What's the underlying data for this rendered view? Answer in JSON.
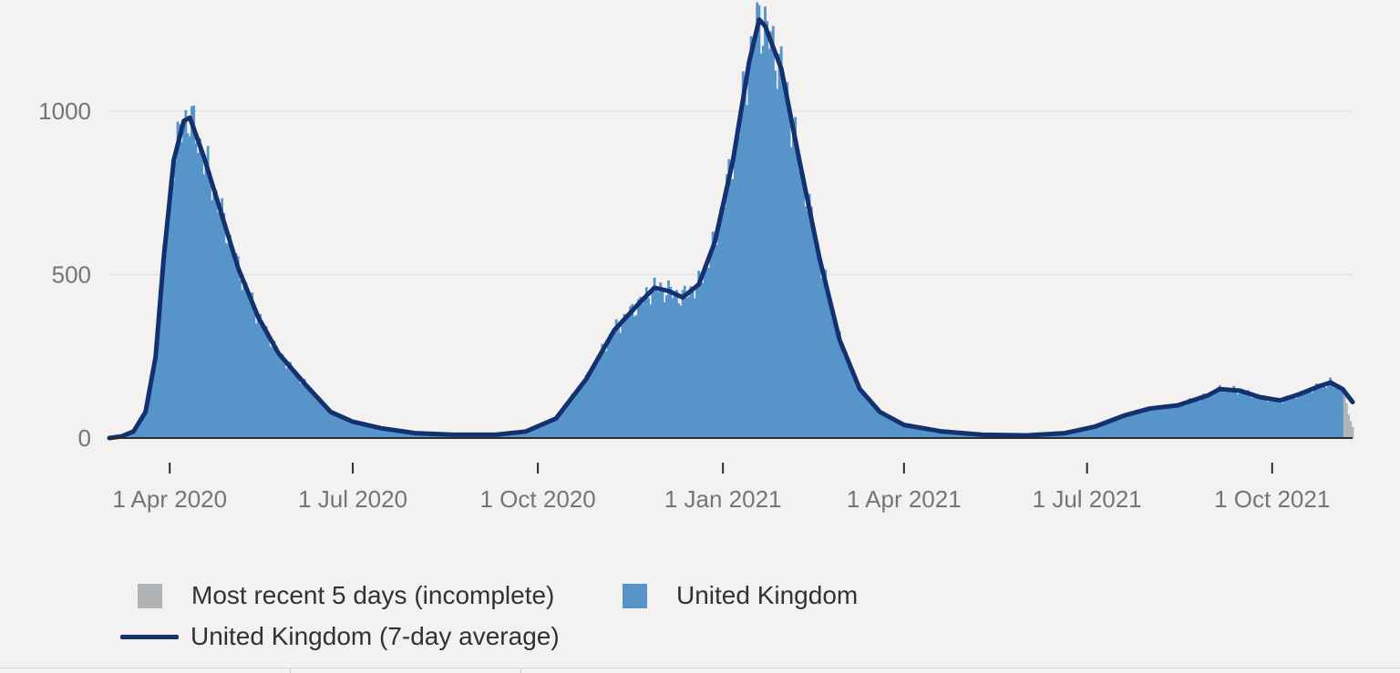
{
  "chart_data": {
    "type": "bar",
    "x_type": "date",
    "x_start": "2020-03-02",
    "x_end": "2021-11-10",
    "ylim": [
      0,
      1340
    ],
    "y_ticks": [
      0,
      500,
      1000
    ],
    "y_tick_labels": [
      "0",
      "500",
      "1000"
    ],
    "x_ticks": [
      "2020-04-01",
      "2020-07-01",
      "2020-10-01",
      "2021-01-01",
      "2021-04-01",
      "2021-07-01",
      "2021-10-01"
    ],
    "x_tick_labels": [
      "1 Apr 2020",
      "1 Jul 2020",
      "1 Oct 2020",
      "1 Jan 2021",
      "1 Apr 2021",
      "1 Jul 2021",
      "1 Oct 2021"
    ],
    "grid": true,
    "legend_position": "bottom",
    "incomplete_days": 5,
    "colors": {
      "bars": "#5694ca",
      "incomplete": "#b1b4b6",
      "average": "#12316e",
      "grid": "#e4e4e4"
    },
    "series": [
      {
        "name": "United Kingdom",
        "role": "bars"
      },
      {
        "name": "United Kingdom (7-day average)",
        "role": "line"
      },
      {
        "name": "Most recent 5 days (incomplete)",
        "role": "incomplete"
      }
    ],
    "average_points": [
      [
        "2020-03-02",
        0
      ],
      [
        "2020-03-08",
        5
      ],
      [
        "2020-03-14",
        20
      ],
      [
        "2020-03-20",
        80
      ],
      [
        "2020-03-25",
        250
      ],
      [
        "2020-03-29",
        550
      ],
      [
        "2020-04-03",
        850
      ],
      [
        "2020-04-08",
        970
      ],
      [
        "2020-04-11",
        980
      ],
      [
        "2020-04-18",
        860
      ],
      [
        "2020-04-26",
        700
      ],
      [
        "2020-05-05",
        520
      ],
      [
        "2020-05-15",
        370
      ],
      [
        "2020-05-25",
        260
      ],
      [
        "2020-06-08",
        160
      ],
      [
        "2020-06-20",
        80
      ],
      [
        "2020-07-01",
        50
      ],
      [
        "2020-07-15",
        30
      ],
      [
        "2020-08-01",
        15
      ],
      [
        "2020-08-20",
        10
      ],
      [
        "2020-09-10",
        10
      ],
      [
        "2020-09-25",
        20
      ],
      [
        "2020-10-10",
        60
      ],
      [
        "2020-10-25",
        180
      ],
      [
        "2020-11-08",
        330
      ],
      [
        "2020-11-20",
        410
      ],
      [
        "2020-11-28",
        460
      ],
      [
        "2020-12-05",
        450
      ],
      [
        "2020-12-12",
        430
      ],
      [
        "2020-12-20",
        470
      ],
      [
        "2020-12-28",
        600
      ],
      [
        "2021-01-06",
        850
      ],
      [
        "2021-01-14",
        1150
      ],
      [
        "2021-01-19",
        1280
      ],
      [
        "2021-01-22",
        1260
      ],
      [
        "2021-01-30",
        1130
      ],
      [
        "2021-02-08",
        850
      ],
      [
        "2021-02-18",
        550
      ],
      [
        "2021-02-28",
        300
      ],
      [
        "2021-03-10",
        150
      ],
      [
        "2021-03-20",
        80
      ],
      [
        "2021-04-01",
        40
      ],
      [
        "2021-04-20",
        20
      ],
      [
        "2021-05-10",
        10
      ],
      [
        "2021-06-01",
        8
      ],
      [
        "2021-06-20",
        15
      ],
      [
        "2021-07-05",
        35
      ],
      [
        "2021-07-20",
        70
      ],
      [
        "2021-08-01",
        90
      ],
      [
        "2021-08-15",
        100
      ],
      [
        "2021-08-30",
        130
      ],
      [
        "2021-09-05",
        150
      ],
      [
        "2021-09-15",
        145
      ],
      [
        "2021-09-25",
        125
      ],
      [
        "2021-10-05",
        115
      ],
      [
        "2021-10-15",
        135
      ],
      [
        "2021-10-25",
        160
      ],
      [
        "2021-10-30",
        170
      ],
      [
        "2021-11-05",
        150
      ],
      [
        "2021-11-10",
        110
      ]
    ]
  },
  "legend": {
    "incomplete_label": "Most recent 5 days (incomplete)",
    "bars_label": "United Kingdom",
    "average_label": "United Kingdom (7-day average)"
  }
}
